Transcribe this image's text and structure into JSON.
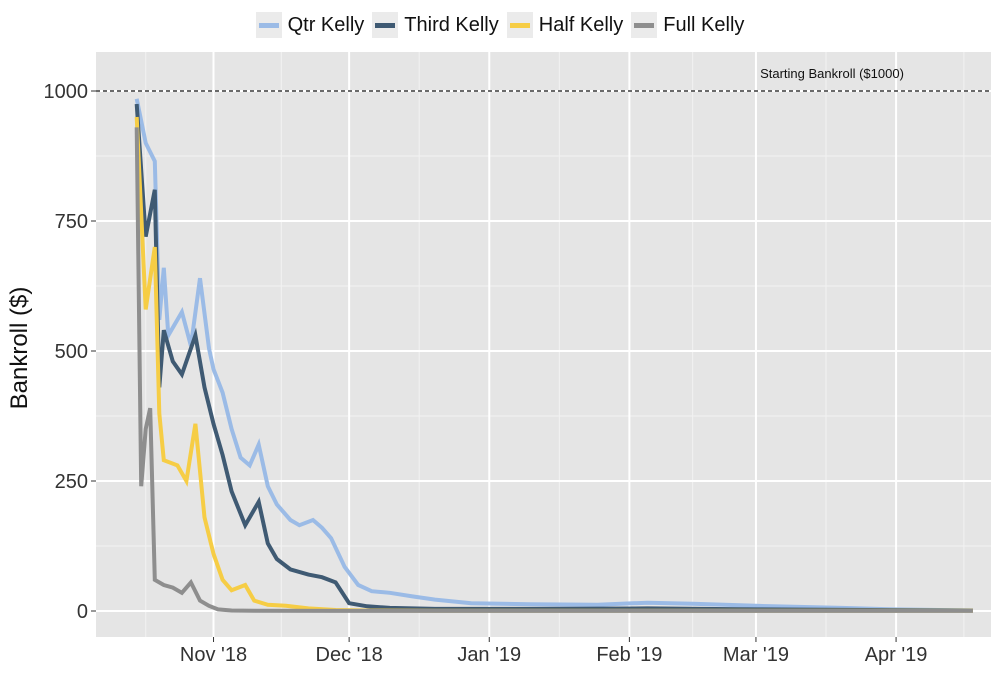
{
  "chart_data": {
    "type": "line",
    "title": "",
    "xlabel": "",
    "ylabel": "Bankroll ($)",
    "x_ticks": [
      "Nov '18",
      "Dec '18",
      "Jan '19",
      "Feb '19",
      "Mar '19",
      "Apr '19"
    ],
    "x_tick_dates": [
      "2018-11-01",
      "2018-12-01",
      "2019-01-01",
      "2019-02-01",
      "2019-03-01",
      "2019-04-01"
    ],
    "xlim": [
      "2018-10-06",
      "2019-04-22"
    ],
    "y_ticks": [
      0,
      250,
      500,
      750,
      1000
    ],
    "ylim": [
      -50,
      1075
    ],
    "grid": true,
    "legend_position": "top",
    "reference_line": {
      "y": 1000,
      "label": "Starting Bankroll ($1000)"
    },
    "series": [
      {
        "name": "Qtr Kelly",
        "color": "#9bbbe6",
        "points": [
          [
            "2018-10-15",
            985
          ],
          [
            "2018-10-17",
            900
          ],
          [
            "2018-10-19",
            865
          ],
          [
            "2018-10-20",
            560
          ],
          [
            "2018-10-21",
            660
          ],
          [
            "2018-10-22",
            530
          ],
          [
            "2018-10-25",
            575
          ],
          [
            "2018-10-27",
            510
          ],
          [
            "2018-10-29",
            640
          ],
          [
            "2018-10-31",
            505
          ],
          [
            "2018-11-01",
            465
          ],
          [
            "2018-11-03",
            420
          ],
          [
            "2018-11-05",
            350
          ],
          [
            "2018-11-07",
            295
          ],
          [
            "2018-11-09",
            280
          ],
          [
            "2018-11-11",
            320
          ],
          [
            "2018-11-13",
            240
          ],
          [
            "2018-11-15",
            205
          ],
          [
            "2018-11-18",
            175
          ],
          [
            "2018-11-20",
            165
          ],
          [
            "2018-11-23",
            175
          ],
          [
            "2018-11-25",
            160
          ],
          [
            "2018-11-27",
            140
          ],
          [
            "2018-11-30",
            85
          ],
          [
            "2018-12-03",
            50
          ],
          [
            "2018-12-06",
            38
          ],
          [
            "2018-12-10",
            35
          ],
          [
            "2018-12-15",
            28
          ],
          [
            "2018-12-20",
            22
          ],
          [
            "2018-12-28",
            15
          ],
          [
            "2019-01-10",
            13
          ],
          [
            "2019-01-25",
            12
          ],
          [
            "2019-02-05",
            16
          ],
          [
            "2019-02-15",
            14
          ],
          [
            "2019-03-01",
            10
          ],
          [
            "2019-03-20",
            6
          ],
          [
            "2019-04-01",
            3
          ],
          [
            "2019-04-18",
            1
          ]
        ]
      },
      {
        "name": "Third Kelly",
        "color": "#3f5a73",
        "points": [
          [
            "2018-10-15",
            975
          ],
          [
            "2018-10-17",
            720
          ],
          [
            "2018-10-19",
            810
          ],
          [
            "2018-10-20",
            430
          ],
          [
            "2018-10-21",
            540
          ],
          [
            "2018-10-23",
            480
          ],
          [
            "2018-10-25",
            455
          ],
          [
            "2018-10-28",
            530
          ],
          [
            "2018-10-30",
            430
          ],
          [
            "2018-11-01",
            360
          ],
          [
            "2018-11-03",
            300
          ],
          [
            "2018-11-05",
            230
          ],
          [
            "2018-11-08",
            165
          ],
          [
            "2018-11-11",
            210
          ],
          [
            "2018-11-13",
            130
          ],
          [
            "2018-11-15",
            100
          ],
          [
            "2018-11-18",
            80
          ],
          [
            "2018-11-22",
            70
          ],
          [
            "2018-11-25",
            65
          ],
          [
            "2018-11-28",
            55
          ],
          [
            "2018-12-01",
            15
          ],
          [
            "2018-12-05",
            9
          ],
          [
            "2018-12-10",
            6
          ],
          [
            "2018-12-20",
            4
          ],
          [
            "2019-01-10",
            4
          ],
          [
            "2019-02-05",
            5
          ],
          [
            "2019-03-01",
            3
          ],
          [
            "2019-04-18",
            1
          ]
        ]
      },
      {
        "name": "Half Kelly",
        "color": "#f6cd45",
        "points": [
          [
            "2018-10-15",
            950
          ],
          [
            "2018-10-17",
            580
          ],
          [
            "2018-10-19",
            700
          ],
          [
            "2018-10-20",
            380
          ],
          [
            "2018-10-21",
            290
          ],
          [
            "2018-10-24",
            280
          ],
          [
            "2018-10-26",
            250
          ],
          [
            "2018-10-28",
            360
          ],
          [
            "2018-10-30",
            180
          ],
          [
            "2018-11-01",
            110
          ],
          [
            "2018-11-03",
            60
          ],
          [
            "2018-11-05",
            40
          ],
          [
            "2018-11-08",
            50
          ],
          [
            "2018-11-10",
            20
          ],
          [
            "2018-11-13",
            12
          ],
          [
            "2018-11-17",
            10
          ],
          [
            "2018-11-22",
            5
          ],
          [
            "2018-11-28",
            2
          ],
          [
            "2018-12-05",
            1
          ],
          [
            "2018-12-20",
            0.5
          ],
          [
            "2019-04-18",
            0.3
          ]
        ]
      },
      {
        "name": "Full Kelly",
        "color": "#8e8e8e",
        "points": [
          [
            "2018-10-15",
            930
          ],
          [
            "2018-10-16",
            240
          ],
          [
            "2018-10-17",
            350
          ],
          [
            "2018-10-18",
            390
          ],
          [
            "2018-10-19",
            60
          ],
          [
            "2018-10-21",
            50
          ],
          [
            "2018-10-23",
            45
          ],
          [
            "2018-10-25",
            35
          ],
          [
            "2018-10-27",
            55
          ],
          [
            "2018-10-29",
            20
          ],
          [
            "2018-10-31",
            10
          ],
          [
            "2018-11-02",
            3
          ],
          [
            "2018-11-05",
            1
          ],
          [
            "2018-11-10",
            0.5
          ],
          [
            "2018-12-01",
            0.2
          ],
          [
            "2019-04-18",
            0.1
          ]
        ]
      }
    ]
  }
}
